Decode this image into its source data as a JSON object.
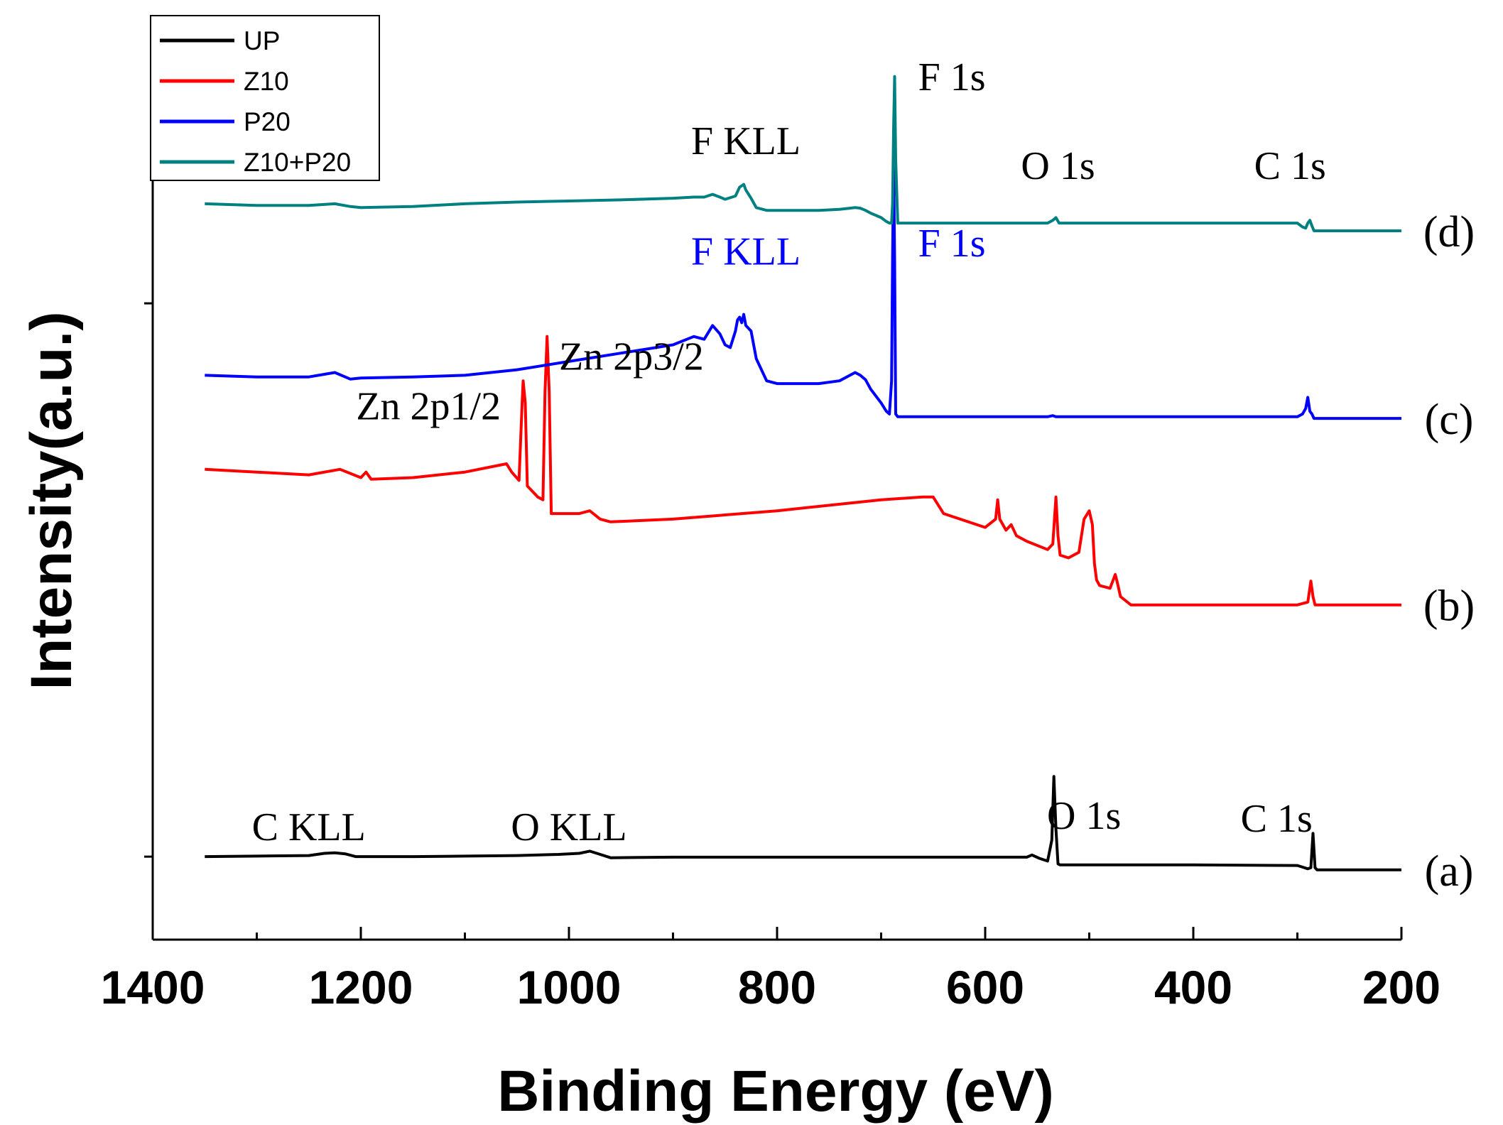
{
  "chart_data": {
    "type": "line",
    "xlabel": "Binding Energy (eV)",
    "ylabel": "Intensity(a.u.)",
    "xlim": [
      1400,
      200
    ],
    "x_ticks": [
      "1400",
      "1200",
      "1000",
      "800",
      "600",
      "400",
      "200"
    ],
    "x_axis_reversed": true,
    "y_ticks_labeled": false,
    "legend": {
      "position": "top-left",
      "entries": [
        "UP",
        "Z10",
        "P20",
        "Z10+P20"
      ]
    },
    "series": [
      {
        "name": "UP",
        "color": "#000000",
        "curve_label": "(a)",
        "x": [
          1350,
          1300,
          1250,
          1235,
          1225,
          1215,
          1205,
          1150,
          1100,
          1050,
          1010,
          1000,
          990,
          980,
          970,
          960,
          900,
          800,
          700,
          600,
          560,
          555,
          548,
          540,
          536,
          534,
          532,
          530,
          528,
          520,
          450,
          400,
          300,
          295,
          290,
          287,
          285,
          283,
          281,
          278,
          270,
          200
        ],
        "y": [
          0,
          0.01,
          0.02,
          0.06,
          0.07,
          0.05,
          0,
          0,
          0.01,
          0.02,
          0.04,
          0.05,
          0.06,
          0.1,
          0.04,
          -0.02,
          -0.01,
          -0.01,
          -0.01,
          -0.01,
          -0.01,
          0.03,
          -0.03,
          -0.08,
          0.3,
          1.45,
          0.5,
          -0.13,
          -0.15,
          -0.15,
          -0.15,
          -0.15,
          -0.16,
          -0.19,
          -0.22,
          -0.2,
          0.42,
          -0.2,
          -0.24,
          -0.24,
          -0.24,
          -0.24
        ]
      },
      {
        "name": "Z10",
        "color": "#ff0000",
        "curve_label": "(b)",
        "x": [
          1350,
          1300,
          1250,
          1220,
          1200,
          1195,
          1190,
          1150,
          1100,
          1060,
          1055,
          1048,
          1045,
          1044,
          1042,
          1040,
          1030,
          1025,
          1023,
          1021,
          1019,
          1017,
          1010,
          990,
          980,
          970,
          960,
          900,
          800,
          700,
          660,
          650,
          640,
          600,
          590,
          588,
          586,
          580,
          575,
          570,
          560,
          540,
          535,
          532,
          530,
          528,
          520,
          510,
          505,
          500,
          497,
          495,
          493,
          490,
          480,
          475,
          473,
          470,
          460,
          450,
          400,
          300,
          290,
          287,
          285,
          283,
          280,
          200
        ],
        "y": [
          7.0,
          6.95,
          6.9,
          7.0,
          6.85,
          6.95,
          6.82,
          6.85,
          6.95,
          7.1,
          6.95,
          6.8,
          8.2,
          8.6,
          8.2,
          6.7,
          6.5,
          6.45,
          8.4,
          9.4,
          8.4,
          6.2,
          6.2,
          6.2,
          6.25,
          6.1,
          6.05,
          6.1,
          6.25,
          6.45,
          6.5,
          6.5,
          6.2,
          5.95,
          6.1,
          6.45,
          6.1,
          5.9,
          6.0,
          5.8,
          5.7,
          5.55,
          5.65,
          6.5,
          5.8,
          5.45,
          5.4,
          5.5,
          6.1,
          6.25,
          6.0,
          5.3,
          5.0,
          4.9,
          4.85,
          5.1,
          4.95,
          4.7,
          4.55,
          4.55,
          4.55,
          4.55,
          4.6,
          4.98,
          4.7,
          4.55,
          4.55,
          4.55
        ]
      },
      {
        "name": "P20",
        "color": "#0000ff",
        "curve_label": "(c)",
        "x": [
          1350,
          1300,
          1250,
          1225,
          1210,
          1200,
          1150,
          1100,
          1050,
          1000,
          950,
          900,
          880,
          870,
          862,
          855,
          850,
          845,
          840,
          838,
          836,
          834,
          832,
          830,
          825,
          820,
          810,
          800,
          760,
          740,
          730,
          725,
          720,
          715,
          710,
          700,
          695,
          692,
          690,
          689,
          688,
          687,
          686,
          684,
          680,
          600,
          540,
          535,
          532,
          500,
          400,
          300,
          295,
          292,
          290,
          288,
          286,
          284,
          280,
          200
        ],
        "y": [
          8.7,
          8.67,
          8.67,
          8.75,
          8.63,
          8.65,
          8.67,
          8.7,
          8.8,
          8.95,
          9.1,
          9.25,
          9.4,
          9.35,
          9.6,
          9.45,
          9.25,
          9.2,
          9.5,
          9.7,
          9.75,
          9.65,
          9.8,
          9.6,
          9.5,
          9.0,
          8.6,
          8.55,
          8.55,
          8.6,
          8.7,
          8.75,
          8.7,
          8.62,
          8.45,
          8.2,
          8.05,
          8.0,
          8.6,
          10.8,
          12.5,
          10.8,
          8.0,
          7.95,
          7.95,
          7.95,
          7.95,
          7.97,
          7.95,
          7.95,
          7.95,
          7.95,
          8.0,
          8.1,
          8.3,
          8.05,
          8.0,
          7.92,
          7.92,
          7.92
        ]
      },
      {
        "name": "Z10+P20",
        "color": "#008080",
        "curve_label": "(d)",
        "x": [
          1350,
          1300,
          1250,
          1225,
          1210,
          1200,
          1150,
          1100,
          1050,
          1000,
          950,
          900,
          880,
          870,
          862,
          855,
          850,
          840,
          836,
          832,
          830,
          825,
          820,
          810,
          800,
          760,
          740,
          730,
          725,
          720,
          715,
          710,
          700,
          695,
          692,
          690,
          689,
          688,
          687,
          686,
          684,
          680,
          600,
          540,
          535,
          532,
          529,
          500,
          400,
          300,
          295,
          292,
          290,
          288,
          286,
          284,
          280,
          200
        ],
        "y": [
          11.8,
          11.77,
          11.77,
          11.8,
          11.75,
          11.73,
          11.75,
          11.8,
          11.83,
          11.85,
          11.87,
          11.9,
          11.92,
          11.92,
          11.97,
          11.92,
          11.88,
          11.94,
          12.1,
          12.15,
          12.05,
          11.9,
          11.73,
          11.68,
          11.68,
          11.68,
          11.7,
          11.72,
          11.73,
          11.72,
          11.68,
          11.63,
          11.55,
          11.48,
          11.45,
          11.45,
          11.8,
          13.2,
          14.1,
          12.6,
          11.45,
          11.45,
          11.45,
          11.45,
          11.5,
          11.55,
          11.45,
          11.45,
          11.45,
          11.45,
          11.38,
          11.36,
          11.45,
          11.5,
          11.4,
          11.31,
          11.31,
          11.31
        ]
      }
    ],
    "annotations": [
      {
        "text": "C KLL",
        "x": 1250,
        "y": 0.3,
        "color": "#000000"
      },
      {
        "text": "O KLL",
        "x": 1000,
        "y": 0.3,
        "color": "#000000"
      },
      {
        "text": "O 1s",
        "x": 505,
        "y": 0.5,
        "color": "#000000"
      },
      {
        "text": "C 1s",
        "x": 320,
        "y": 0.45,
        "color": "#000000"
      },
      {
        "text": "Zn 2p1/2",
        "x": 1135,
        "y": 7.9,
        "color": "#000000"
      },
      {
        "text": "Zn 2p3/2",
        "x": 940,
        "y": 8.8,
        "color": "#000000"
      },
      {
        "text": "F KLL",
        "x": 830,
        "y": 10.7,
        "color": "#0000ff"
      },
      {
        "text": "F 1s",
        "x": 632,
        "y": 10.85,
        "color": "#0000ff"
      },
      {
        "text": "F KLL",
        "x": 830,
        "y": 12.7,
        "color": "#000000"
      },
      {
        "text": "F 1s",
        "x": 632,
        "y": 13.85,
        "color": "#000000"
      },
      {
        "text": "O 1s",
        "x": 530,
        "y": 12.25,
        "color": "#000000"
      },
      {
        "text": "C 1s",
        "x": 307,
        "y": 12.25,
        "color": "#000000"
      }
    ]
  }
}
